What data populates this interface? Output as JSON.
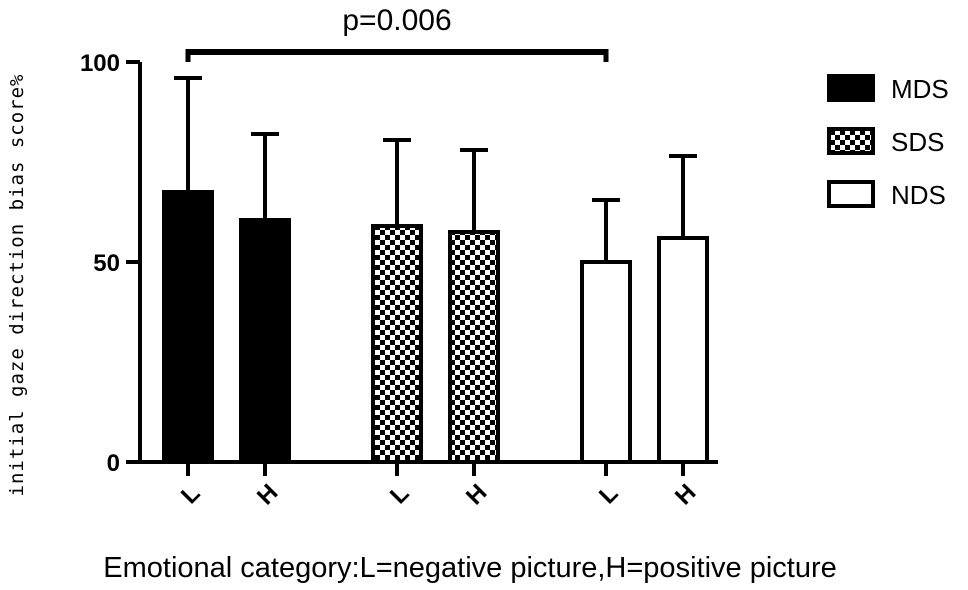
{
  "chart_data": {
    "type": "bar",
    "ylabel": "initial gaze direction bias score%",
    "xlabel": "Emotional category:L=negative picture,H=positive picture",
    "ylim": [
      0,
      100
    ],
    "yticks": [
      0,
      50,
      100
    ],
    "grid": false,
    "legend_position": "top-right",
    "series": [
      {
        "name": "MDS",
        "pattern": "solid",
        "color": "#000000",
        "categories": [
          "L",
          "H"
        ],
        "values": [
          67.5,
          60.5
        ],
        "errors": [
          28.5,
          21.5
        ]
      },
      {
        "name": "SDS",
        "pattern": "checker",
        "color": "#000000",
        "categories": [
          "L",
          "H"
        ],
        "values": [
          59,
          57.5
        ],
        "errors": [
          21.5,
          20.5
        ]
      },
      {
        "name": "NDS",
        "pattern": "open",
        "color": "#ffffff",
        "categories": [
          "L",
          "H"
        ],
        "values": [
          50,
          56
        ],
        "errors": [
          15.5,
          20.5
        ]
      }
    ],
    "annotations": [
      {
        "text": "p=0.006",
        "from": {
          "series": "MDS",
          "category": "L"
        },
        "to": {
          "series": "NDS",
          "category": "L"
        },
        "at_value": 100
      }
    ]
  }
}
